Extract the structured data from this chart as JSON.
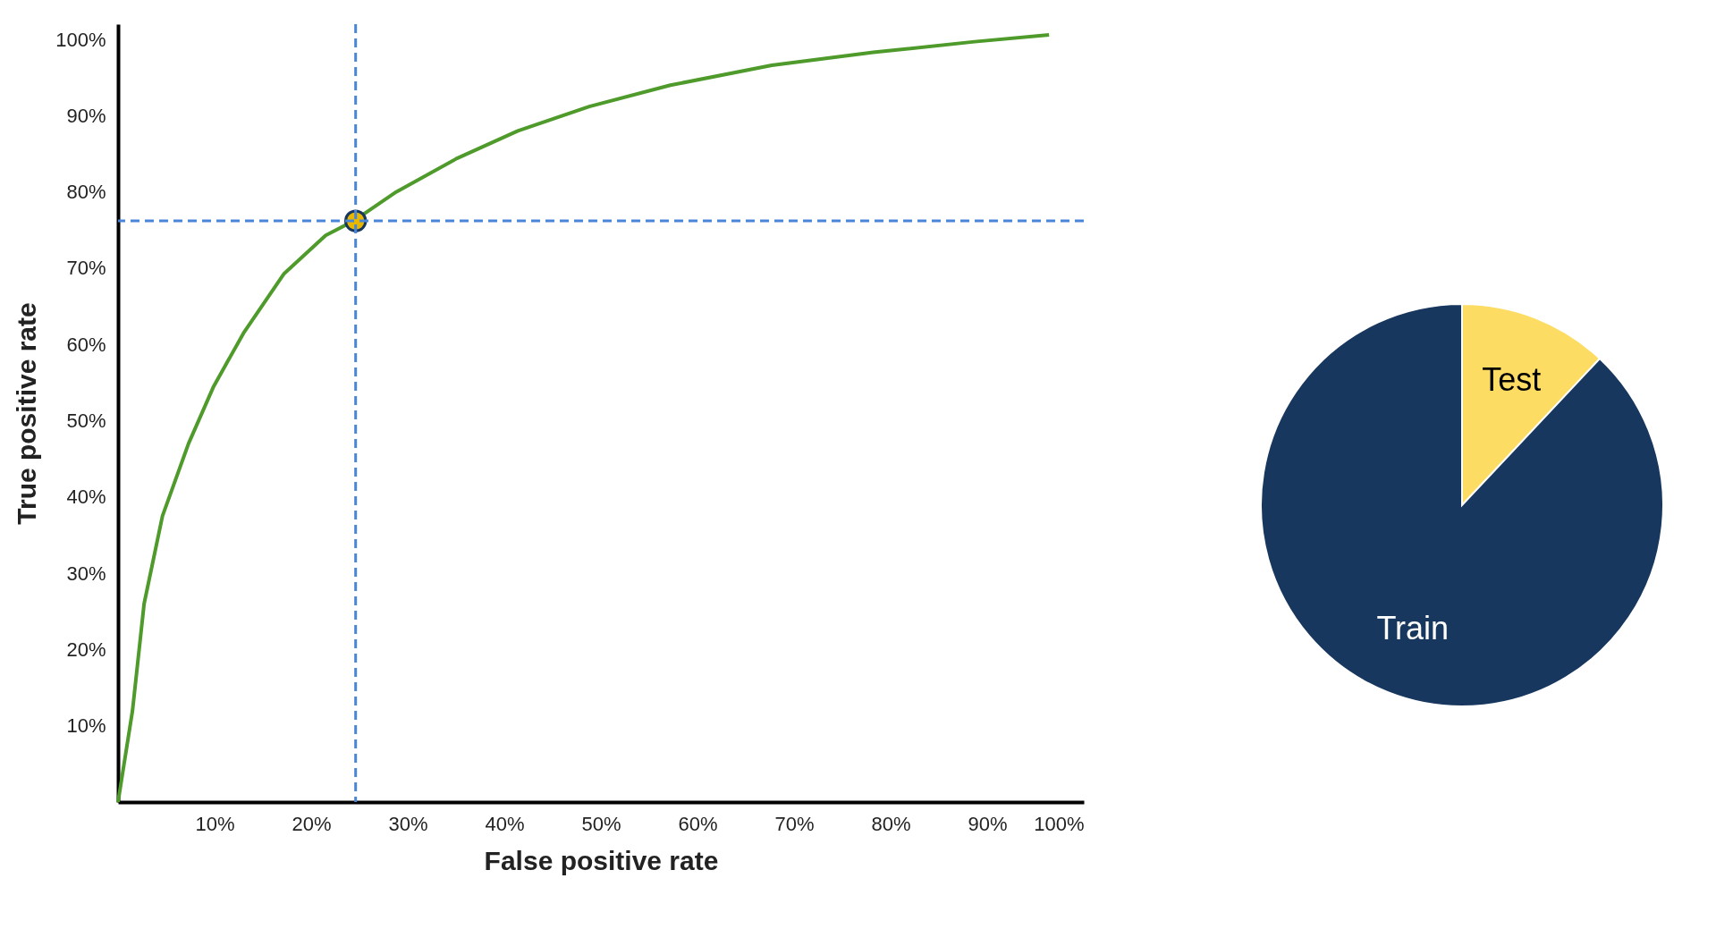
{
  "chart_data": [
    {
      "type": "line",
      "xlabel": "False positive rate",
      "ylabel": "True positive rate",
      "xlim": [
        0,
        100
      ],
      "ylim": [
        0,
        102
      ],
      "xticks": [
        {
          "value": 10,
          "label": "10%"
        },
        {
          "value": 20,
          "label": "20%"
        },
        {
          "value": 30,
          "label": "30%"
        },
        {
          "value": 40,
          "label": "40%"
        },
        {
          "value": 50,
          "label": "50%"
        },
        {
          "value": 60,
          "label": "60%"
        },
        {
          "value": 70,
          "label": "70%"
        },
        {
          "value": 80,
          "label": "80%"
        },
        {
          "value": 90,
          "label": "90%"
        },
        {
          "value": 100,
          "label": "100%"
        }
      ],
      "yticks": [
        {
          "value": 10,
          "label": "10%"
        },
        {
          "value": 20,
          "label": "20%"
        },
        {
          "value": 30,
          "label": "30%"
        },
        {
          "value": 40,
          "label": "40%"
        },
        {
          "value": 50,
          "label": "50%"
        },
        {
          "value": 60,
          "label": "60%"
        },
        {
          "value": 70,
          "label": "70%"
        },
        {
          "value": 80,
          "label": "80%"
        },
        {
          "value": 90,
          "label": "90%"
        },
        {
          "value": 100,
          "label": "100%"
        }
      ],
      "grid": false,
      "legend": false,
      "series": [
        {
          "type": "line",
          "color": "#4e9a2a",
          "x": [
            0,
            1.5,
            2.7,
            4.6,
            7.3,
            9.9,
            13,
            17.2,
            21.5,
            24.4,
            28.8,
            35.1,
            41.4,
            48.8,
            57.2,
            67.7,
            78.2,
            88.7,
            96.4
          ],
          "values": [
            0,
            12,
            26,
            37.5,
            47,
            54.5,
            61.5,
            69.3,
            74.3,
            76.2,
            80,
            84.4,
            88,
            91.2,
            94,
            96.6,
            98.3,
            99.7,
            100.6
          ]
        },
        {
          "type": "scatter",
          "marker": "circle",
          "color": "#e8b800",
          "x": [
            24.6
          ],
          "values": [
            76.2
          ]
        }
      ],
      "ref_lines": [
        {
          "axis": "x",
          "value": 24.6,
          "color": "#4a86d8",
          "line_style": "dashed"
        },
        {
          "axis": "y",
          "value": 76.2,
          "color": "#4a86d8",
          "line_style": "dashed"
        }
      ]
    },
    {
      "type": "pie",
      "categories": [
        "Test",
        "Train"
      ],
      "values": [
        12,
        88
      ],
      "colors": [
        "#fcdc63",
        "#17375e"
      ],
      "legend": false
    }
  ]
}
